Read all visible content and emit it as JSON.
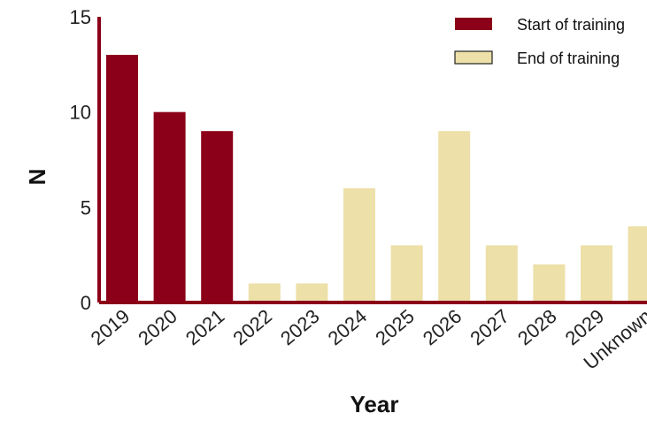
{
  "chart_data": {
    "type": "bar",
    "categories": [
      "2019",
      "2020",
      "2021",
      "2022",
      "2023",
      "2024",
      "2025",
      "2026",
      "2027",
      "2028",
      "2029",
      "Unknown"
    ],
    "series": [
      {
        "name": "Start of training",
        "values": [
          13,
          10,
          9,
          null,
          null,
          null,
          null,
          null,
          null,
          null,
          null,
          null
        ]
      },
      {
        "name": "End of training",
        "values": [
          null,
          null,
          null,
          1,
          1,
          6,
          3,
          9,
          3,
          2,
          3,
          4
        ]
      }
    ],
    "colors": {
      "Start of training": "#8b0018",
      "End of training": "#ede0a8"
    },
    "axis_color": "#8b0018",
    "title": "",
    "xlabel": "Year",
    "ylabel": "N",
    "ylim": [
      0,
      15
    ],
    "yticks": [
      0,
      5,
      10,
      15
    ],
    "grid": false,
    "legend": "top-right"
  }
}
